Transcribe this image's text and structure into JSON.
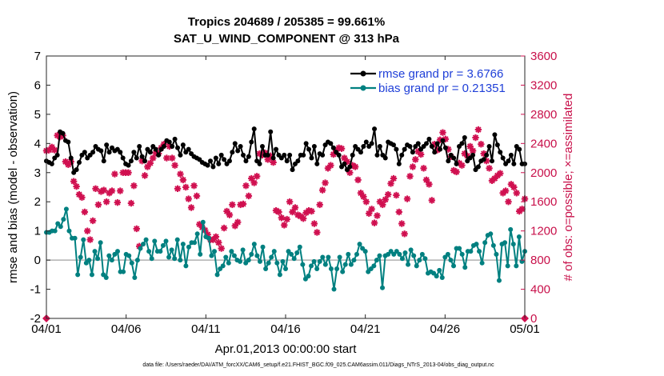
{
  "chart_data": {
    "type": "line",
    "title": "Tropics 204689 / 205385 = 99.661%",
    "subtitle": "SAT_U_WIND_COMPONENT @ 313 hPa",
    "xlabel": "Apr.01,2013 00:00:00 start",
    "ylabel": "rmse and bias (model - observation)",
    "y2label": "# of obs: o=possible; ×=assimilated",
    "footnote": "data file: /Users/raeder/DAI/ATM_forcXX/CAM6_setup/f.e21.FHIST_BGC.f09_025.CAM6assim.011/Diags_NTrS_2013-04/obs_diag_output.nc",
    "xlim": [
      0,
      30
    ],
    "ylim": [
      -2,
      7
    ],
    "y2lim": [
      0,
      3600
    ],
    "x_ticks": [
      0,
      5,
      10,
      15,
      20,
      25,
      30
    ],
    "x_tick_labels": [
      "04/01",
      "04/06",
      "04/11",
      "04/16",
      "04/21",
      "04/26",
      "05/01"
    ],
    "y_ticks": [
      "-2",
      "-1",
      "0",
      "1",
      "2",
      "3",
      "4",
      "5",
      "6",
      "7"
    ],
    "y2_ticks": [
      "0",
      "400",
      "800",
      "1200",
      "1600",
      "2000",
      "2400",
      "2800",
      "3200",
      "3600"
    ],
    "zero_line": 0,
    "colors": {
      "rmse": "#000000",
      "bias": "#008080",
      "obs": "#d01050",
      "zero": "#b0b0b0",
      "legend_text": "#1f3fd8"
    },
    "legend": [
      {
        "name": "rmse grand pr = 3.6766"
      },
      {
        "name": "bias grand pr = 0.21351"
      }
    ],
    "series": [
      {
        "name": "rmse",
        "values": [
          3.4,
          3.35,
          3.3,
          3.5,
          3.6,
          4.4,
          4.35,
          4.1,
          4.05,
          3.5,
          3.0,
          3.1,
          3.35,
          3.6,
          3.7,
          3.5,
          3.6,
          3.7,
          3.9,
          3.8,
          3.75,
          3.4,
          3.95,
          3.7,
          3.85,
          3.75,
          3.8,
          3.7,
          3.5,
          3.3,
          3.25,
          3.4,
          3.7,
          3.5,
          3.9,
          3.55,
          3.4,
          3.8,
          3.7,
          3.9,
          3.8,
          3.6,
          3.8,
          3.9,
          4.1,
          4.05,
          3.9,
          4.15,
          3.85,
          3.6,
          3.95,
          3.7,
          3.8,
          3.65,
          3.55,
          3.5,
          3.45,
          3.35,
          3.3,
          3.25,
          3.4,
          3.2,
          3.5,
          3.3,
          3.6,
          3.45,
          3.3,
          3.4,
          3.7,
          4.0,
          3.75,
          3.9,
          3.6,
          3.4,
          3.55,
          4.05,
          4.5,
          3.4,
          3.3,
          3.9,
          3.6,
          3.6,
          4.4,
          3.5,
          3.8,
          3.6,
          3.5,
          3.6,
          3.4,
          3.6,
          3.1,
          3.3,
          3.4,
          3.6,
          3.6,
          4.0,
          3.8,
          3.5,
          3.9,
          3.3,
          3.65,
          3.6,
          3.95,
          4.05,
          4.0,
          3.85,
          3.7,
          3.6,
          3.2,
          3.3,
          3.1,
          3.2,
          3.6,
          3.9,
          3.8,
          3.7,
          3.9,
          4.05,
          3.9,
          4.0,
          4.5,
          3.6,
          3.9,
          3.6,
          3.5,
          4.05,
          4.0,
          3.95,
          3.8,
          3.3,
          3.6,
          3.8,
          3.95,
          3.9,
          3.7,
          3.9,
          4.0,
          3.8,
          3.9,
          4.0,
          4.15,
          3.9,
          3.7,
          4.0,
          3.8,
          4.1,
          3.85,
          3.4,
          3.6,
          3.5,
          3.3,
          3.9,
          4.0,
          4.2,
          3.4,
          3.5,
          3.6,
          3.1,
          3.2,
          3.4,
          3.45,
          3.6,
          3.9,
          3.4,
          4.3,
          3.95,
          3.7,
          3.5,
          3.3,
          3.4,
          3.6,
          3.3,
          3.9,
          3.8,
          3.3,
          3.3
        ],
        "x_start": 0,
        "x_end": 30
      },
      {
        "name": "bias",
        "values": [
          0.95,
          0.95,
          1.0,
          1.0,
          1.25,
          1.15,
          1.4,
          1.75,
          1.0,
          0.75,
          0.75,
          -0.5,
          0.1,
          0.7,
          -0.1,
          0.0,
          -0.5,
          0.3,
          0.05,
          0.6,
          -0.5,
          -0.6,
          0.15,
          0.0,
          0.2,
          0.3,
          -0.4,
          -0.4,
          0.2,
          0.15,
          -0.1,
          -0.6,
          0.0,
          0.4,
          0.55,
          0.7,
          0.3,
          0.05,
          0.65,
          0.3,
          0.3,
          0.5,
          0.65,
          0.1,
          0.35,
          0.05,
          0.7,
          0.0,
          0.55,
          -0.2,
          0.45,
          0.6,
          0.6,
          0.9,
          0.2,
          1.3,
          0.8,
          0.75,
          0.15,
          0.3,
          -0.5,
          -0.3,
          -0.2,
          0.1,
          -0.1,
          0.3,
          0.15,
          0.0,
          -0.05,
          0.35,
          -0.1,
          0.0,
          0.2,
          0.55,
          0.15,
          -0.05,
          0.45,
          -0.3,
          -0.1,
          0.1,
          0.3,
          -0.1,
          -0.5,
          -0.05,
          -0.3,
          0.3,
          0.2,
          0.05,
          0.25,
          0.45,
          -0.15,
          -0.65,
          -0.55,
          -0.2,
          -0.05,
          -0.3,
          -0.05,
          0.1,
          -0.15,
          0.1,
          -0.3,
          -1.0,
          -0.3,
          0.1,
          -0.4,
          -0.15,
          0.2,
          -0.15,
          0.0,
          0.2,
          0.55,
          0.4,
          0.3,
          -0.4,
          -0.3,
          -0.2,
          0.0,
          0.15,
          -0.95,
          0.15,
          0.2,
          0.3,
          0.2,
          0.3,
          0.2,
          0.05,
          0.25,
          -0.15,
          0.35,
          0.15,
          -0.2,
          0.0,
          0.2,
          0.05,
          -0.45,
          -0.4,
          -0.45,
          -0.55,
          -0.35,
          -0.6,
          0.1,
          0.2,
          0.0,
          -0.2,
          0.4,
          0.4,
          0.2,
          -0.25,
          0.3,
          0.3,
          0.5,
          0.55,
          0.3,
          -0.1,
          0.6,
          0.85,
          0.9,
          0.5,
          0.2,
          -0.7,
          0.55,
          0.6,
          -0.2,
          1.05,
          0.55,
          -0.2,
          0.8,
          -0.05,
          0.3
        ],
        "x_start": 0,
        "x_end": 30
      },
      {
        "name": "obs_assimilated",
        "values": [
          2300,
          2310,
          2350,
          2310,
          2510,
          2490,
          2510,
          2150,
          2110,
          2150,
          1880,
          1810,
          1700,
          1660,
          1460,
          1200,
          1080,
          1340,
          1780,
          1560,
          1740,
          1760,
          1600,
          1720,
          1750,
          1980,
          1590,
          1750,
          2000,
          2000,
          2000,
          1580,
          1820,
          1230,
          990,
          2160,
          1960,
          2080,
          2130,
          2200,
          2270,
          2260,
          2340,
          2390,
          2200,
          2360,
          2200,
          2100,
          1780,
          1980,
          1900,
          1800,
          1640,
          1520,
          1820,
          1680,
          1290,
          1250,
          1210,
          1150,
          1080,
          1080,
          1120,
          1040,
          960,
          1240,
          1470,
          1420,
          1560,
          1270,
          1320,
          1560,
          1570,
          1820,
          1680,
          1920,
          1860,
          1950,
          2260,
          2240,
          2270,
          2180,
          2230,
          2140,
          1480,
          1460,
          1380,
          1280,
          1360,
          1600,
          1460,
          1520,
          1420,
          1400,
          1370,
          1450,
          1480,
          1470,
          1300,
          1180,
          1560,
          1760,
          1860,
          2060,
          2100,
          2250,
          2300,
          2340,
          2330,
          2200,
          2150,
          2000,
          2100,
          2080,
          1900,
          1720,
          1670,
          1600,
          1440,
          1500,
          1310,
          1410,
          1600,
          1560,
          1630,
          1700,
          1850,
          1920,
          1690,
          1460,
          1300,
          1160,
          1640,
          1950,
          2080,
          2180,
          2290,
          2250,
          2060,
          1900,
          1840,
          1620,
          2390,
          2310,
          2450,
          2550,
          2460,
          2320,
          2220,
          2030,
          2010,
          2130,
          2100,
          2260,
          2230,
          2360,
          2300,
          2480,
          2590,
          2390,
          2260,
          2160,
          2060,
          1890,
          1920,
          1960,
          1990,
          1720,
          1750,
          1600,
          1840,
          1800,
          1720,
          1470,
          1500,
          1640
        ],
        "x_start": 0,
        "x_end": 30
      },
      {
        "name": "obs_possible",
        "x": [
          0,
          30
        ],
        "values": [
          0,
          0
        ]
      }
    ]
  }
}
